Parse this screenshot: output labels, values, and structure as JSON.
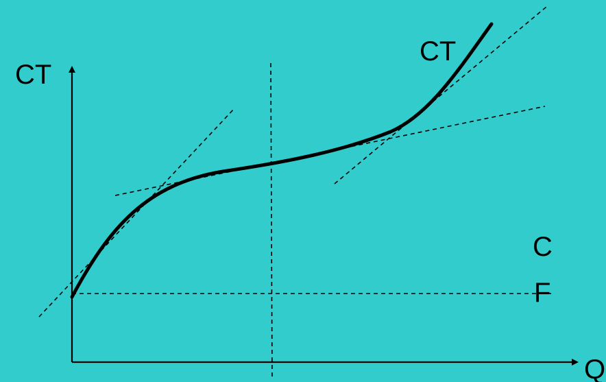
{
  "diagram": {
    "background_color": "#33CCCC",
    "line_color": "#000000",
    "labels": {
      "y_axis": "CT",
      "x_axis": "Q",
      "curve": "CT",
      "fixed_cost_top": "C",
      "fixed_cost_bottom": "F"
    }
  }
}
